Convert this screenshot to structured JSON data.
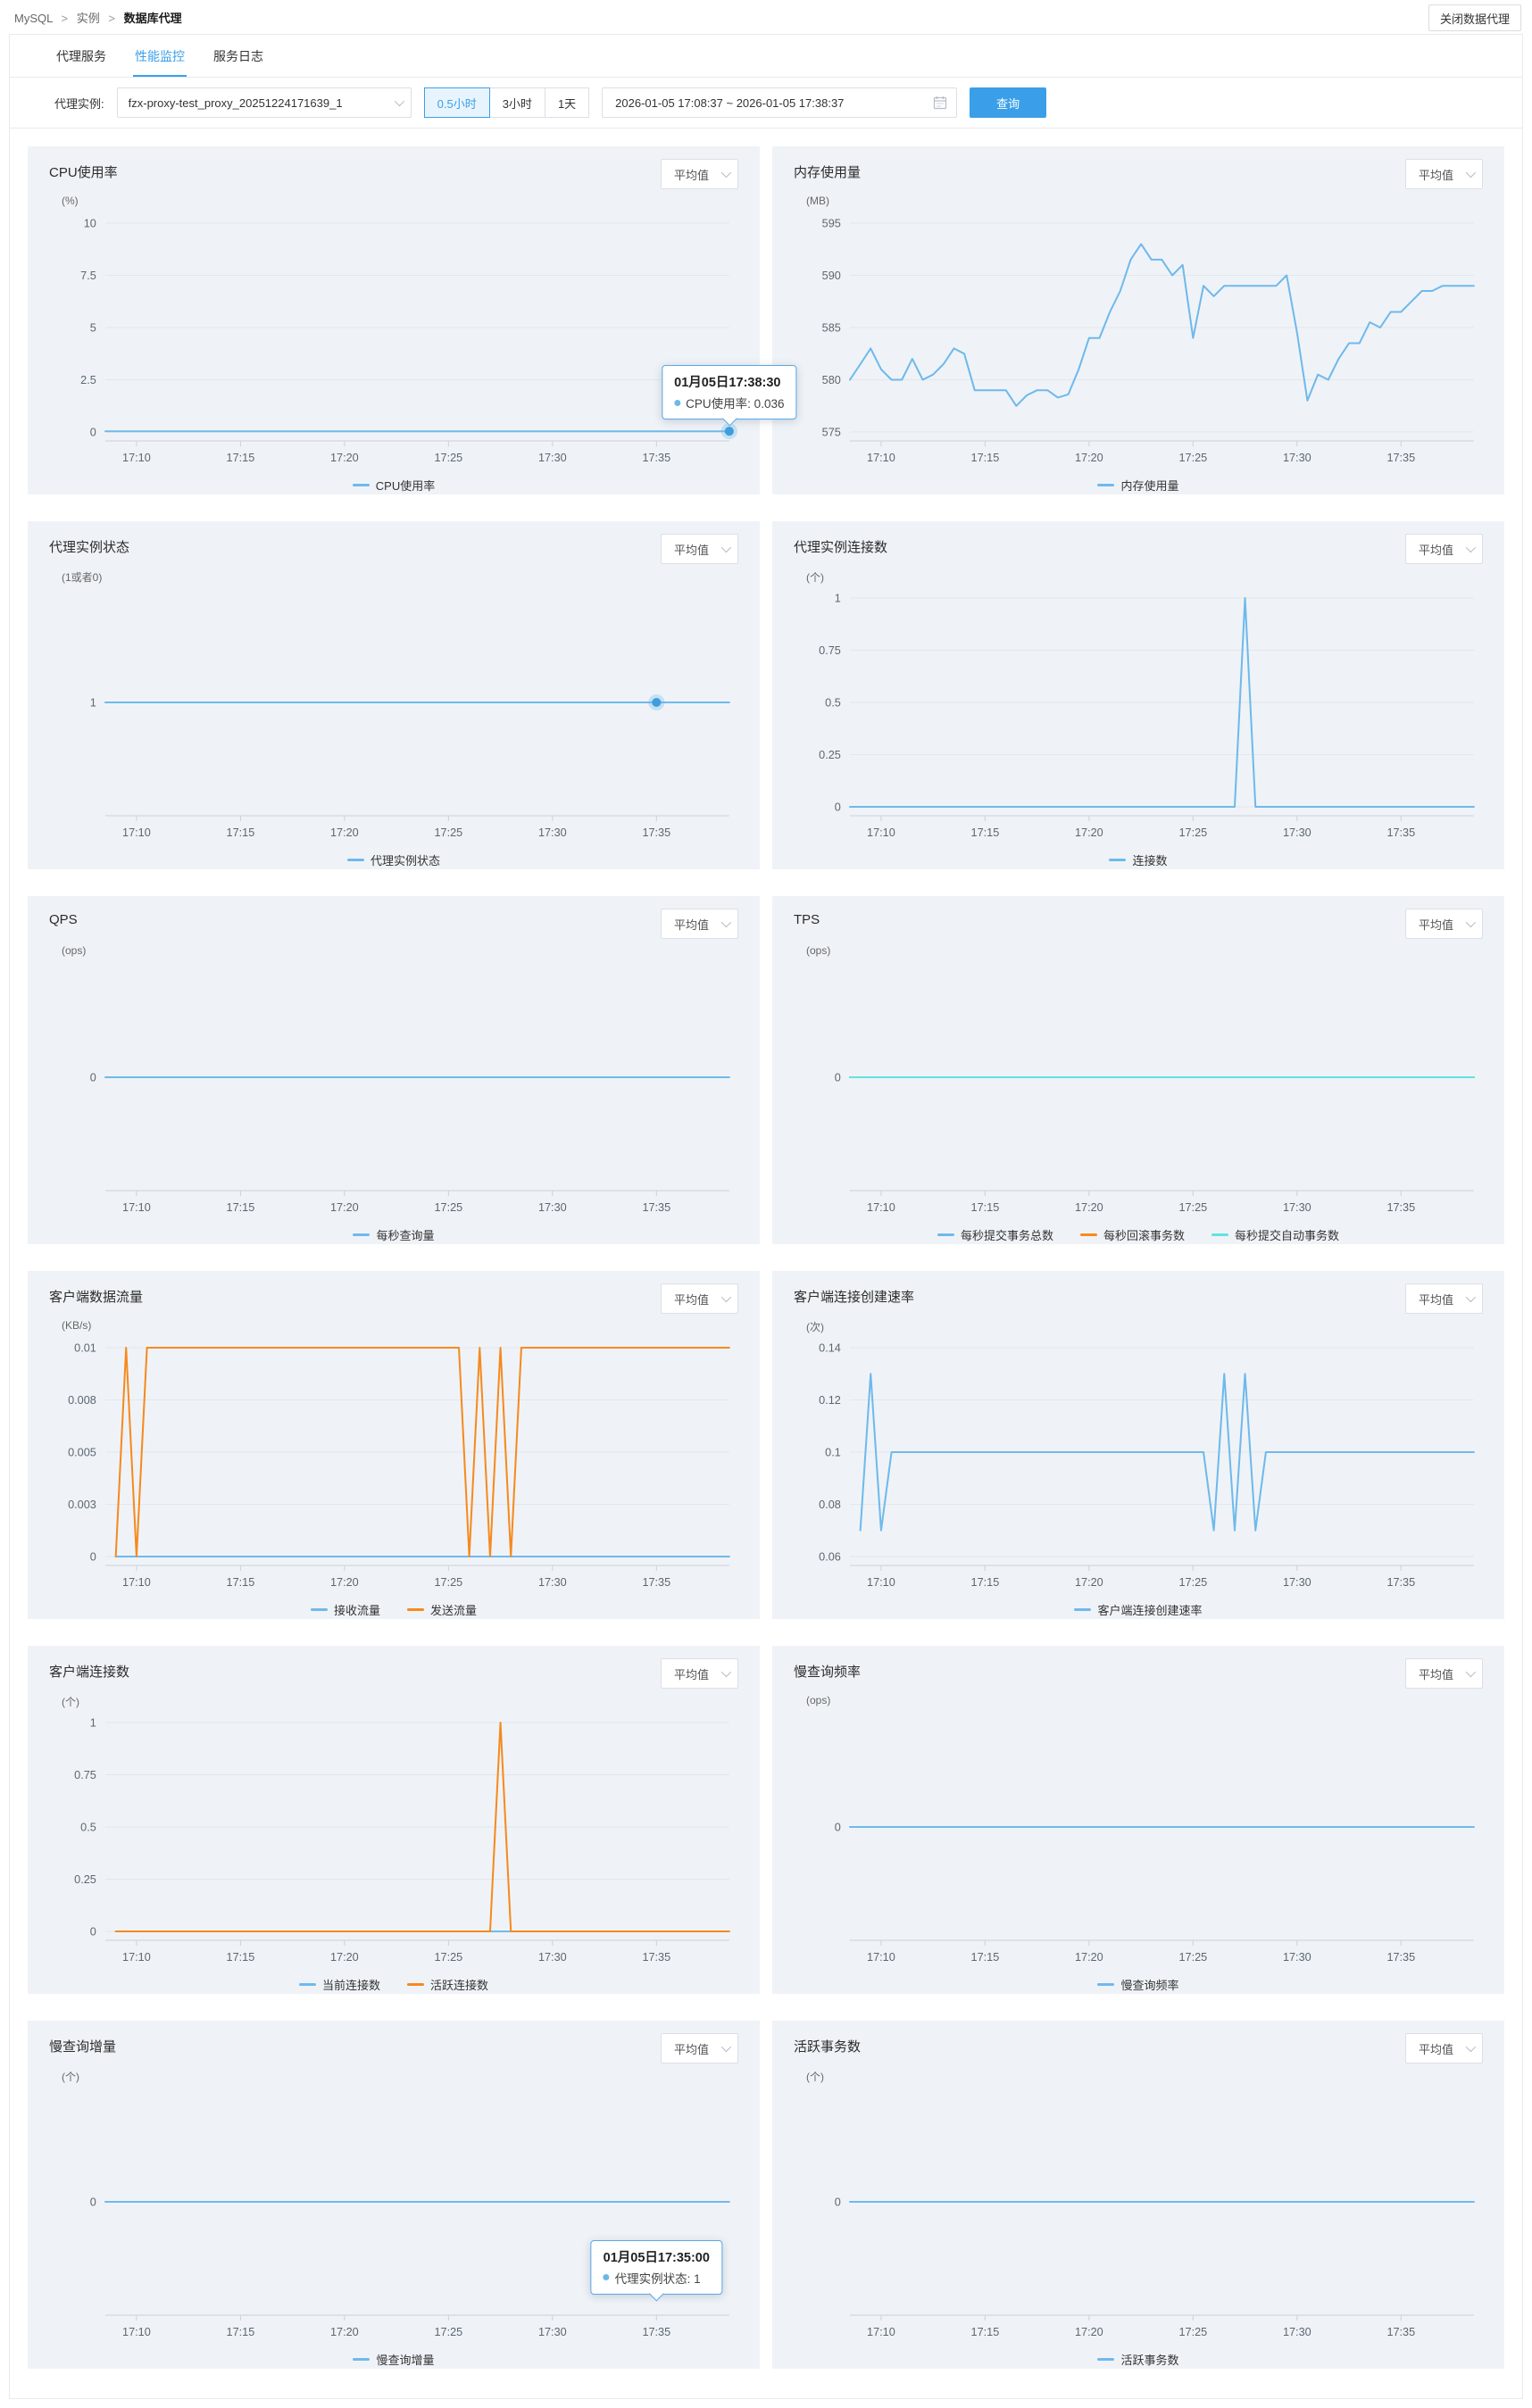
{
  "colors": {
    "accent": "#3a9fe8",
    "blue": "#6fb9ec",
    "orange": "#f58a1f",
    "cyan": "#63e2e0",
    "marker": "#3f9ddc"
  },
  "page": {
    "breadcrumb": [
      "MySQL",
      "实例",
      "数据库代理"
    ],
    "crumb_sep": ">",
    "close_button": "关闭数据代理"
  },
  "tabs": [
    {
      "label": "代理服务",
      "active": false
    },
    {
      "label": "性能监控",
      "active": true
    },
    {
      "label": "服务日志",
      "active": false
    }
  ],
  "filters": {
    "instance_label": "代理实例:",
    "instance_value": "fzx-proxy-test_proxy_20251224171639_1",
    "ranges": [
      "0.5小时",
      "3小时",
      "1天"
    ],
    "active_range": "0.5小时",
    "date_range": "2026-01-05 17:08:37 ~ 2026-01-05 17:38:37",
    "query_button": "查询"
  },
  "chart_data": [
    {
      "type": "line",
      "title": "CPU使用率",
      "unit": "(%)",
      "selector": "平均值",
      "xlim": [
        0,
        30
      ],
      "x_ticks": [
        "17:10",
        "17:15",
        "17:20",
        "17:25",
        "17:30",
        "17:35"
      ],
      "x_tick_min": [
        1.5,
        6.5,
        11.5,
        16.5,
        21.5,
        26.5
      ],
      "ylim": [
        0,
        10
      ],
      "y_ticks": [
        {
          "t": "10",
          "f": 0
        },
        {
          "t": "7.5",
          "f": 0.25
        },
        {
          "t": "5",
          "f": 0.5
        },
        {
          "t": "2.5",
          "f": 0.75
        },
        {
          "t": "0",
          "f": 1
        }
      ],
      "series": [
        {
          "name": "CPU使用率",
          "color": "#6fb9ec",
          "points": [
            [
              0,
              0.036
            ],
            [
              30,
              0.036
            ]
          ]
        }
      ],
      "marker": {
        "x": 30,
        "y": 0.036
      },
      "tooltip": {
        "title": "01月05日17:38:30",
        "item": "CPU使用率: 0.036",
        "ax": 30,
        "ay": 0.036
      }
    },
    {
      "type": "line",
      "title": "内存使用量",
      "unit": "(MB)",
      "selector": "平均值",
      "xlim": [
        0,
        30
      ],
      "x_ticks": [
        "17:10",
        "17:15",
        "17:20",
        "17:25",
        "17:30",
        "17:35"
      ],
      "x_tick_min": [
        1.5,
        6.5,
        11.5,
        16.5,
        21.5,
        26.5
      ],
      "ylim": [
        575,
        595
      ],
      "y_ticks": [
        {
          "t": "595",
          "f": 0
        },
        {
          "t": "590",
          "f": 0.25
        },
        {
          "t": "585",
          "f": 0.5
        },
        {
          "t": "580",
          "f": 0.75
        },
        {
          "t": "575",
          "f": 1
        }
      ],
      "series": [
        {
          "name": "内存使用量",
          "color": "#6fb9ec",
          "points": [
            [
              0,
              580
            ],
            [
              0.5,
              581.5
            ],
            [
              1,
              583
            ],
            [
              1.5,
              581
            ],
            [
              2,
              580
            ],
            [
              2.5,
              580
            ],
            [
              3,
              582
            ],
            [
              3.5,
              580
            ],
            [
              4,
              580.5
            ],
            [
              4.5,
              581.5
            ],
            [
              5,
              583
            ],
            [
              5.5,
              582.5
            ],
            [
              6,
              579
            ],
            [
              6.5,
              579
            ],
            [
              7,
              579
            ],
            [
              7.5,
              579
            ],
            [
              8,
              577.5
            ],
            [
              8.5,
              578.5
            ],
            [
              9,
              579
            ],
            [
              9.5,
              579
            ],
            [
              10,
              578.3
            ],
            [
              10.5,
              578.6
            ],
            [
              11,
              581
            ],
            [
              11.5,
              584
            ],
            [
              12,
              584
            ],
            [
              12.5,
              586.5
            ],
            [
              13,
              588.5
            ],
            [
              13.5,
              591.5
            ],
            [
              14,
              593
            ],
            [
              14.5,
              591.5
            ],
            [
              15,
              591.5
            ],
            [
              15.5,
              590
            ],
            [
              16,
              591
            ],
            [
              16.5,
              584
            ],
            [
              17,
              589
            ],
            [
              17.5,
              588
            ],
            [
              18,
              589
            ],
            [
              19,
              589
            ],
            [
              20,
              589
            ],
            [
              20.5,
              589
            ],
            [
              21,
              590
            ],
            [
              21.5,
              584.5
            ],
            [
              22,
              578
            ],
            [
              22.5,
              580.5
            ],
            [
              23,
              580
            ],
            [
              23.5,
              582
            ],
            [
              24,
              583.5
            ],
            [
              24.5,
              583.5
            ],
            [
              25,
              585.5
            ],
            [
              25.5,
              585
            ],
            [
              26,
              586.5
            ],
            [
              26.5,
              586.5
            ],
            [
              27,
              587.5
            ],
            [
              27.5,
              588.5
            ],
            [
              28,
              588.5
            ],
            [
              28.5,
              589
            ],
            [
              29,
              589
            ],
            [
              30,
              589
            ]
          ]
        }
      ]
    },
    {
      "type": "line",
      "title": "代理实例状态",
      "unit": "(1或者0)",
      "selector": "平均值",
      "xlim": [
        0,
        30
      ],
      "x_ticks": [
        "17:10",
        "17:15",
        "17:20",
        "17:25",
        "17:30",
        "17:35"
      ],
      "x_tick_min": [
        1.5,
        6.5,
        11.5,
        16.5,
        21.5,
        26.5
      ],
      "ylim": [
        0,
        2
      ],
      "y_ticks": [
        {
          "t": "1",
          "f": 0.5
        }
      ],
      "series": [
        {
          "name": "代理实例状态",
          "color": "#6fb9ec",
          "points": [
            [
              0,
              1
            ],
            [
              30,
              1
            ]
          ]
        }
      ],
      "marker": {
        "x": 26.5,
        "y": 1
      }
    },
    {
      "type": "line",
      "title": "代理实例连接数",
      "unit": "(个)",
      "selector": "平均值",
      "xlim": [
        0,
        30
      ],
      "x_ticks": [
        "17:10",
        "17:15",
        "17:20",
        "17:25",
        "17:30",
        "17:35"
      ],
      "x_tick_min": [
        1.5,
        6.5,
        11.5,
        16.5,
        21.5,
        26.5
      ],
      "ylim": [
        0,
        1
      ],
      "y_ticks": [
        {
          "t": "1",
          "f": 0
        },
        {
          "t": "0.75",
          "f": 0.25
        },
        {
          "t": "0.5",
          "f": 0.5
        },
        {
          "t": "0.25",
          "f": 0.75
        },
        {
          "t": "0",
          "f": 1
        }
      ],
      "series": [
        {
          "name": "连接数",
          "color": "#6fb9ec",
          "points": [
            [
              0,
              0
            ],
            [
              18.5,
              0
            ],
            [
              19,
              1
            ],
            [
              19.5,
              0
            ],
            [
              30,
              0
            ]
          ]
        }
      ]
    },
    {
      "type": "line",
      "title": "QPS",
      "unit": "(ops)",
      "selector": "平均值",
      "xlim": [
        0,
        30
      ],
      "x_ticks": [
        "17:10",
        "17:15",
        "17:20",
        "17:25",
        "17:30",
        "17:35"
      ],
      "x_tick_min": [
        1.5,
        6.5,
        11.5,
        16.5,
        21.5,
        26.5
      ],
      "ylim": [
        -1,
        1
      ],
      "y_ticks": [
        {
          "t": "0",
          "f": 0.5
        }
      ],
      "series": [
        {
          "name": "每秒查询量",
          "color": "#6fb9ec",
          "points": [
            [
              0,
              0
            ],
            [
              30,
              0
            ]
          ]
        }
      ]
    },
    {
      "type": "line",
      "title": "TPS",
      "unit": "(ops)",
      "selector": "平均值",
      "xlim": [
        0,
        30
      ],
      "x_ticks": [
        "17:10",
        "17:15",
        "17:20",
        "17:25",
        "17:30",
        "17:35"
      ],
      "x_tick_min": [
        1.5,
        6.5,
        11.5,
        16.5,
        21.5,
        26.5
      ],
      "ylim": [
        -1,
        1
      ],
      "y_ticks": [
        {
          "t": "0",
          "f": 0.5
        }
      ],
      "series": [
        {
          "name": "每秒提交事务总数",
          "color": "#6fb9ec",
          "points": [
            [
              0,
              0
            ],
            [
              30,
              0
            ]
          ]
        },
        {
          "name": "每秒回滚事务数",
          "color": "#f58a1f",
          "points": [
            [
              0,
              0
            ],
            [
              30,
              0
            ]
          ]
        },
        {
          "name": "每秒提交自动事务数",
          "color": "#63e2e0",
          "points": [
            [
              0,
              0
            ],
            [
              30,
              0
            ]
          ]
        }
      ]
    },
    {
      "type": "line",
      "title": "客户端数据流量",
      "unit": "(KB/s)",
      "selector": "平均值",
      "xlim": [
        0,
        30
      ],
      "x_ticks": [
        "17:10",
        "17:15",
        "17:20",
        "17:25",
        "17:30",
        "17:35"
      ],
      "x_tick_min": [
        1.5,
        6.5,
        11.5,
        16.5,
        21.5,
        26.5
      ],
      "ylim": [
        0,
        0.01
      ],
      "y_ticks": [
        {
          "t": "0.01",
          "f": 0
        },
        {
          "t": "0.008",
          "f": 0.25
        },
        {
          "t": "0.005",
          "f": 0.5
        },
        {
          "t": "0.003",
          "f": 0.75
        },
        {
          "t": "0",
          "f": 1
        }
      ],
      "series": [
        {
          "name": "接收流量",
          "color": "#6fb9ec",
          "points": [
            [
              0.5,
              0
            ],
            [
              30,
              0
            ]
          ]
        },
        {
          "name": "发送流量",
          "color": "#f58a1f",
          "points": [
            [
              0.5,
              0
            ],
            [
              1,
              0.01
            ],
            [
              1.5,
              0
            ],
            [
              2,
              0.01
            ],
            [
              17,
              0.01
            ],
            [
              17.5,
              0
            ],
            [
              18,
              0.01
            ],
            [
              18.5,
              0
            ],
            [
              19,
              0.01
            ],
            [
              19.5,
              0
            ],
            [
              20,
              0.01
            ],
            [
              30,
              0.01
            ]
          ]
        }
      ]
    },
    {
      "type": "line",
      "title": "客户端连接创建速率",
      "unit": "(次)",
      "selector": "平均值",
      "xlim": [
        0,
        30
      ],
      "x_ticks": [
        "17:10",
        "17:15",
        "17:20",
        "17:25",
        "17:30",
        "17:35"
      ],
      "x_tick_min": [
        1.5,
        6.5,
        11.5,
        16.5,
        21.5,
        26.5
      ],
      "ylim": [
        0.06,
        0.14
      ],
      "y_ticks": [
        {
          "t": "0.14",
          "f": 0
        },
        {
          "t": "0.12",
          "f": 0.25
        },
        {
          "t": "0.1",
          "f": 0.5
        },
        {
          "t": "0.08",
          "f": 0.75
        },
        {
          "t": "0.06",
          "f": 1
        }
      ],
      "series": [
        {
          "name": "客户端连接创建速率",
          "color": "#6fb9ec",
          "points": [
            [
              0.5,
              0.07
            ],
            [
              1,
              0.13
            ],
            [
              1.5,
              0.07
            ],
            [
              2,
              0.1
            ],
            [
              17,
              0.1
            ],
            [
              17.5,
              0.07
            ],
            [
              18,
              0.13
            ],
            [
              18.5,
              0.07
            ],
            [
              19,
              0.13
            ],
            [
              19.5,
              0.07
            ],
            [
              20,
              0.1
            ],
            [
              30,
              0.1
            ]
          ]
        }
      ]
    },
    {
      "type": "line",
      "title": "客户端连接数",
      "unit": "(个)",
      "selector": "平均值",
      "xlim": [
        0,
        30
      ],
      "x_ticks": [
        "17:10",
        "17:15",
        "17:20",
        "17:25",
        "17:30",
        "17:35"
      ],
      "x_tick_min": [
        1.5,
        6.5,
        11.5,
        16.5,
        21.5,
        26.5
      ],
      "ylim": [
        0,
        1
      ],
      "y_ticks": [
        {
          "t": "1",
          "f": 0
        },
        {
          "t": "0.75",
          "f": 0.25
        },
        {
          "t": "0.5",
          "f": 0.5
        },
        {
          "t": "0.25",
          "f": 0.75
        },
        {
          "t": "0",
          "f": 1
        }
      ],
      "series": [
        {
          "name": "当前连接数",
          "color": "#6fb9ec",
          "points": [
            [
              0.5,
              0
            ],
            [
              30,
              0
            ]
          ]
        },
        {
          "name": "活跃连接数",
          "color": "#f58a1f",
          "points": [
            [
              0.5,
              0
            ],
            [
              18.5,
              0
            ],
            [
              19,
              1
            ],
            [
              19.5,
              0
            ],
            [
              30,
              0
            ]
          ]
        }
      ]
    },
    {
      "type": "line",
      "title": "慢查询频率",
      "unit": "(ops)",
      "selector": "平均值",
      "xlim": [
        0,
        30
      ],
      "x_ticks": [
        "17:10",
        "17:15",
        "17:20",
        "17:25",
        "17:30",
        "17:35"
      ],
      "x_tick_min": [
        1.5,
        6.5,
        11.5,
        16.5,
        21.5,
        26.5
      ],
      "ylim": [
        -1,
        1
      ],
      "y_ticks": [
        {
          "t": "0",
          "f": 0.5
        }
      ],
      "series": [
        {
          "name": "慢查询频率",
          "color": "#6fb9ec",
          "points": [
            [
              0,
              0
            ],
            [
              30,
              0
            ]
          ]
        }
      ]
    },
    {
      "type": "line",
      "title": "慢查询增量",
      "unit": "(个)",
      "selector": "平均值",
      "xlim": [
        0,
        30
      ],
      "x_ticks": [
        "17:10",
        "17:15",
        "17:20",
        "17:25",
        "17:30",
        "17:35"
      ],
      "x_tick_min": [
        1.5,
        6.5,
        11.5,
        16.5,
        21.5,
        26.5
      ],
      "ylim": [
        -1,
        1
      ],
      "y_ticks": [
        {
          "t": "0",
          "f": 0.5
        }
      ],
      "series": [
        {
          "name": "慢查询增量",
          "color": "#6fb9ec",
          "points": [
            [
              0,
              0
            ],
            [
              30,
              0
            ]
          ]
        }
      ],
      "tooltip": {
        "title": "01月05日17:35:00",
        "item": "代理实例状态: 1",
        "ax": 26.5,
        "ay": -1
      }
    },
    {
      "type": "line",
      "title": "活跃事务数",
      "unit": "(个)",
      "selector": "平均值",
      "xlim": [
        0,
        30
      ],
      "x_ticks": [
        "17:10",
        "17:15",
        "17:20",
        "17:25",
        "17:30",
        "17:35"
      ],
      "x_tick_min": [
        1.5,
        6.5,
        11.5,
        16.5,
        21.5,
        26.5
      ],
      "ylim": [
        -1,
        1
      ],
      "y_ticks": [
        {
          "t": "0",
          "f": 0.5
        }
      ],
      "series": [
        {
          "name": "活跃事务数",
          "color": "#6fb9ec",
          "points": [
            [
              0,
              0
            ],
            [
              30,
              0
            ]
          ]
        }
      ]
    }
  ]
}
